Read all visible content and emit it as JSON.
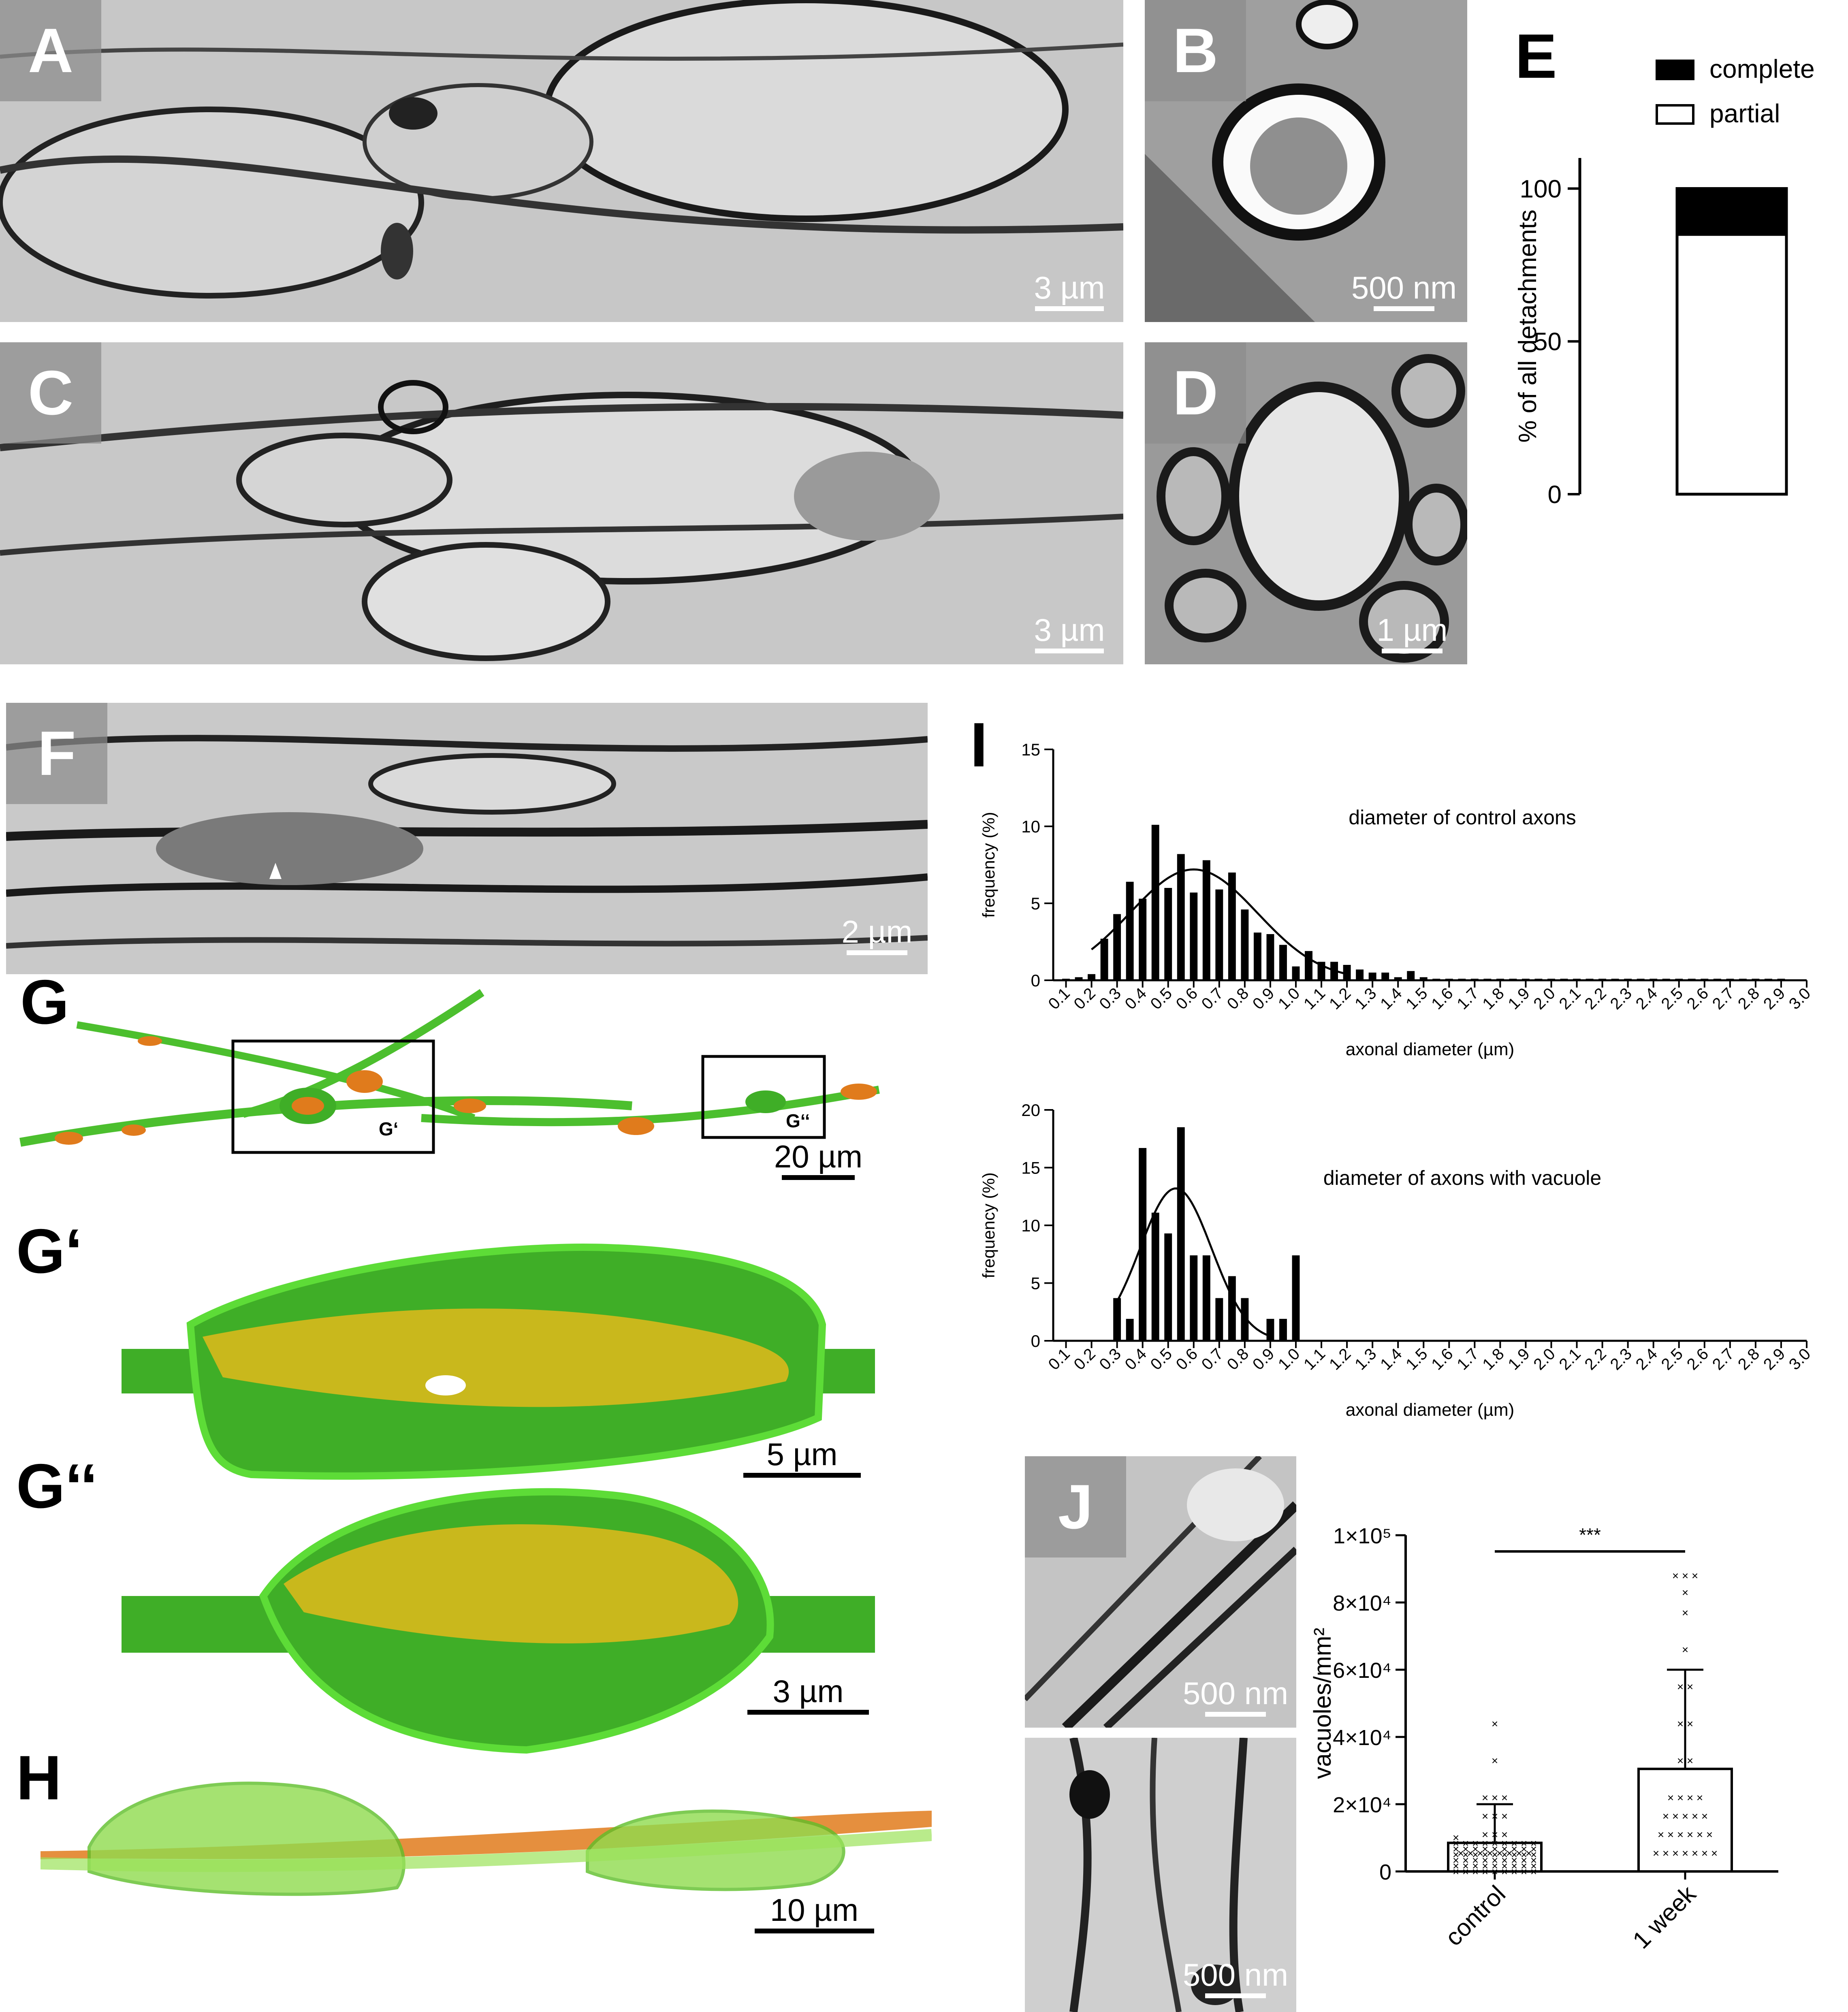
{
  "panels": {
    "A": {
      "label": "A",
      "scale": "3 µm"
    },
    "B": {
      "label": "B",
      "scale": "500 nm"
    },
    "C": {
      "label": "C",
      "scale": "3 µm"
    },
    "D": {
      "label": "D",
      "scale": "1 µm"
    },
    "F": {
      "label": "F",
      "scale": "2 µm"
    },
    "G": {
      "label": "G",
      "scale": "20 µm",
      "box1": "G‘",
      "box2": "G‘‘"
    },
    "Gp": {
      "label": "G‘",
      "scale": "5 µm"
    },
    "Gpp": {
      "label": "G‘‘",
      "scale": "3 µm"
    },
    "H": {
      "label": "H",
      "scale": "10 µm"
    },
    "J": {
      "label": "J",
      "scale_top": "500 nm",
      "scale_bottom": "500 nm"
    },
    "E": {
      "label": "E"
    },
    "I": {
      "label": "I"
    }
  },
  "colors": {
    "green": "#3fae27",
    "bright_green": "#4fd12e",
    "orange": "#e07b1c",
    "yellow": "#c9b81c"
  },
  "chart_data": [
    {
      "id": "E",
      "type": "bar",
      "stacked": true,
      "categories": [
        ""
      ],
      "series": [
        {
          "name": "complete",
          "values": [
            15
          ],
          "color": "#000000"
        },
        {
          "name": "partial",
          "values": [
            85
          ],
          "color": "#ffffff"
        }
      ],
      "xlabel": "",
      "ylabel": "% of all detachments",
      "ylim": [
        0,
        110
      ],
      "yticks": [
        "0",
        "50",
        "100"
      ],
      "legend": "top"
    },
    {
      "id": "I1",
      "type": "bar",
      "title": "diameter of control axons",
      "xlabel": "axonal diameter (µm)",
      "ylabel": "frequency (%)",
      "ylim": [
        0,
        15
      ],
      "yticks": [
        "0",
        "5",
        "10",
        "15"
      ],
      "x_ticks": [
        "0.1",
        "0.2",
        "0.3",
        "0.4",
        "0.5",
        "0.6",
        "0.7",
        "0.8",
        "0.9",
        "1.0",
        "1.1",
        "1.2",
        "1.3",
        "1.4",
        "1.5",
        "1.6",
        "1.7",
        "1.8",
        "1.9",
        "2.0",
        "2.1",
        "2.2",
        "2.3",
        "2.4",
        "2.5",
        "2.6",
        "2.7",
        "2.8",
        "2.9",
        "3.0"
      ],
      "bin_centers": [
        0.1,
        0.15,
        0.2,
        0.25,
        0.3,
        0.35,
        0.4,
        0.45,
        0.5,
        0.55,
        0.6,
        0.65,
        0.7,
        0.75,
        0.8,
        0.85,
        0.9,
        0.95,
        1.0,
        1.05,
        1.1,
        1.15,
        1.2,
        1.25,
        1.3,
        1.35,
        1.4,
        1.45,
        1.5,
        1.55,
        1.6,
        1.65,
        1.7,
        1.75,
        1.8,
        1.85,
        1.9,
        1.95,
        2.0,
        2.05,
        2.1,
        2.15,
        2.2,
        2.25,
        2.3,
        2.35,
        2.4,
        2.45,
        2.5,
        2.55,
        2.6,
        2.65,
        2.7,
        2.75,
        2.8,
        2.85,
        2.9
      ],
      "values": [
        0.1,
        0.2,
        0.4,
        2.7,
        4.3,
        6.4,
        5.3,
        10.1,
        6.0,
        8.2,
        5.7,
        7.8,
        5.9,
        7.0,
        4.6,
        3.1,
        3.0,
        2.3,
        0.9,
        1.9,
        1.2,
        1.2,
        1.0,
        0.7,
        0.5,
        0.5,
        0.2,
        0.6,
        0.2,
        0.1,
        0.1,
        0.1,
        0.1,
        0.1,
        0.1,
        0.1,
        0.1,
        0.1,
        0.1,
        0.1,
        0.1,
        0.1,
        0.1,
        0.1,
        0.1,
        0.1,
        0.1,
        0.1,
        0.1,
        0.1,
        0.1,
        0.1,
        0.1,
        0.1,
        0.1,
        0.1,
        0.1
      ],
      "fit": {
        "type": "gaussian",
        "mean": 0.6,
        "sd": 0.25,
        "peak": 7.2,
        "x_range": [
          0.2,
          1.2
        ]
      }
    },
    {
      "id": "I2",
      "type": "bar",
      "title": "diameter of axons with vacuole",
      "xlabel": "axonal diameter (µm)",
      "ylabel": "frequency (%)",
      "ylim": [
        0,
        20
      ],
      "yticks": [
        "0",
        "5",
        "10",
        "15",
        "20"
      ],
      "x_ticks": [
        "0.1",
        "0.2",
        "0.3",
        "0.4",
        "0.5",
        "0.6",
        "0.7",
        "0.8",
        "0.9",
        "1.0",
        "1.1",
        "1.2",
        "1.3",
        "1.4",
        "1.5",
        "1.6",
        "1.7",
        "1.8",
        "1.9",
        "2.0",
        "2.1",
        "2.2",
        "2.3",
        "2.4",
        "2.5",
        "2.6",
        "2.7",
        "2.8",
        "2.9",
        "3.0"
      ],
      "bin_centers": [
        0.3,
        0.35,
        0.4,
        0.45,
        0.5,
        0.55,
        0.6,
        0.65,
        0.7,
        0.75,
        0.8,
        0.85,
        0.9,
        0.95,
        1.0
      ],
      "values": [
        3.7,
        1.9,
        16.7,
        11.1,
        9.3,
        18.5,
        7.4,
        7.4,
        3.7,
        5.6,
        3.7,
        0,
        1.9,
        1.9,
        7.4
      ],
      "fit": {
        "type": "gaussian",
        "mean": 0.53,
        "sd": 0.14,
        "peak": 13.2,
        "x_range": [
          0.3,
          0.9
        ]
      }
    },
    {
      "id": "J",
      "type": "bar",
      "categories": [
        "control",
        "1 week"
      ],
      "values": [
        8500,
        30500
      ],
      "errors": [
        11500,
        29500
      ],
      "xlabel": "",
      "ylabel": "vacuoles/mm²",
      "ylim": [
        0,
        100000
      ],
      "yticks": [
        "0",
        "2×10⁴",
        "4×10⁴",
        "6×10⁴",
        "8×10⁴",
        "1×10⁵"
      ],
      "significance": "***",
      "points": [
        [
          0,
          0,
          0,
          0,
          0,
          0,
          0,
          0,
          0,
          0,
          0,
          0,
          0,
          0,
          0,
          0,
          0,
          0,
          0,
          0,
          0,
          0,
          0,
          0,
          0,
          0,
          0,
          0,
          0,
          0,
          0,
          0,
          0,
          0,
          0,
          0,
          0,
          0,
          0,
          0,
          0,
          0,
          0,
          0,
          0,
          0,
          0,
          0,
          0,
          0,
          0,
          0,
          0,
          0,
          0,
          5500,
          5500,
          5500,
          5500,
          5500,
          5500,
          5500,
          5500,
          11000,
          11000,
          11000,
          16500,
          16500,
          16500,
          22000,
          22000,
          22000,
          33000,
          44000
        ],
        [
          5500,
          5500,
          5500,
          5500,
          5500,
          5500,
          5500,
          11000,
          11000,
          11000,
          11000,
          11000,
          11000,
          16500,
          16500,
          16500,
          16500,
          16500,
          22000,
          22000,
          22000,
          22000,
          33000,
          33000,
          44000,
          44000,
          55000,
          55000,
          66000,
          77000,
          83000,
          88000,
          88000,
          88000
        ]
      ]
    }
  ]
}
